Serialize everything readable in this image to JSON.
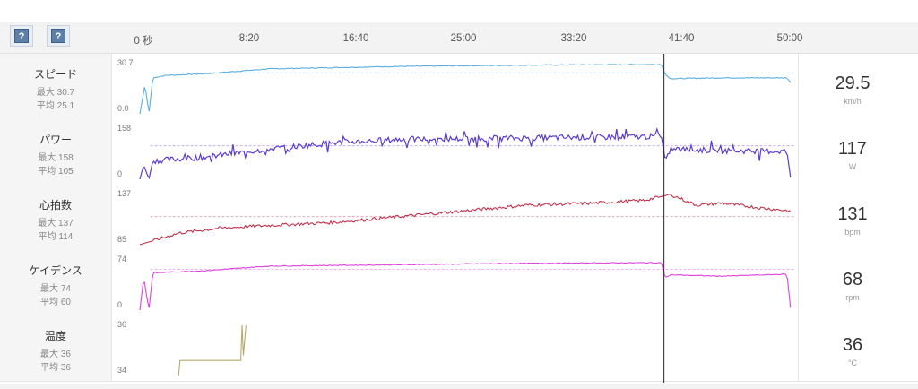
{
  "help_buttons": [
    {
      "label": "?"
    },
    {
      "label": "?"
    }
  ],
  "time_ticks": [
    "0 秒",
    "8:20",
    "16:40",
    "25:00",
    "33:20",
    "41:40",
    "50:00"
  ],
  "cursor_time_min": 40.5,
  "total_time_min": 50.5,
  "rows": [
    {
      "id": "speed",
      "name": "スピード",
      "max": "最大 30.7",
      "avg": "平均 25.1",
      "value": "29.5",
      "unit": "km/h",
      "ytop": "30.7",
      "ybot": "0.0",
      "color": "#5aaee0",
      "min": 0,
      "maxv": 30.7,
      "avgv": 25.1
    },
    {
      "id": "power",
      "name": "パワー",
      "max": "最大 158",
      "avg": "平均 105",
      "value": "117",
      "unit": "W",
      "ytop": "158",
      "ybot": "0",
      "color": "#5a3bd0",
      "min": 0,
      "maxv": 158,
      "avgv": 105
    },
    {
      "id": "hr",
      "name": "心拍数",
      "max": "最大 137",
      "avg": "平均 114",
      "value": "131",
      "unit": "bpm",
      "ytop": "137",
      "ybot": "85",
      "color": "#c0304a",
      "min": 85,
      "maxv": 137,
      "avgv": 114
    },
    {
      "id": "cadence",
      "name": "ケイデンス",
      "max": "最大 74",
      "avg": "平均 60",
      "value": "68",
      "unit": "rpm",
      "ytop": "74",
      "ybot": "0",
      "color": "#e040e0",
      "min": 0,
      "maxv": 74,
      "avgv": 60
    },
    {
      "id": "temp",
      "name": "温度",
      "max": "最大 36",
      "avg": "平均 36",
      "value": "36",
      "unit": "°C",
      "ytop": "36",
      "ybot": "34",
      "color": "#b5a96a",
      "min": 34,
      "maxv": 36,
      "avgv": 36
    }
  ],
  "chart_data": {
    "type": "line",
    "xlabel": "",
    "x_range_min": [
      0,
      50.5
    ],
    "series": [
      {
        "name": "スピード",
        "values_profile": [
          [
            0,
            0
          ],
          [
            0.4,
            18
          ],
          [
            0.7,
            0
          ],
          [
            1,
            22
          ],
          [
            2,
            23.5
          ],
          [
            5,
            24.5
          ],
          [
            10,
            27.5
          ],
          [
            20,
            29
          ],
          [
            30,
            29.8
          ],
          [
            40.3,
            30.2
          ],
          [
            40.6,
            24
          ],
          [
            41,
            21.5
          ],
          [
            45,
            22
          ],
          [
            50,
            22
          ],
          [
            50.3,
            19
          ]
        ]
      },
      {
        "name": "パワー",
        "values_profile": [
          [
            0,
            0
          ],
          [
            0.3,
            45
          ],
          [
            0.7,
            0
          ],
          [
            1,
            58
          ],
          [
            5,
            70
          ],
          [
            10,
            95
          ],
          [
            15,
            115
          ],
          [
            20,
            125
          ],
          [
            30,
            130
          ],
          [
            40.3,
            135
          ],
          [
            40.6,
            60
          ],
          [
            41,
            95
          ],
          [
            45,
            90
          ],
          [
            50,
            88
          ],
          [
            50.3,
            0
          ]
        ]
      },
      {
        "name": "心拍数",
        "values_profile": [
          [
            0,
            85
          ],
          [
            3,
            97
          ],
          [
            6,
            102
          ],
          [
            10,
            105
          ],
          [
            15,
            108
          ],
          [
            20,
            114
          ],
          [
            25,
            120
          ],
          [
            30,
            126
          ],
          [
            35,
            128
          ],
          [
            39,
            131
          ],
          [
            41,
            137
          ],
          [
            43,
            126
          ],
          [
            45,
            128
          ],
          [
            48,
            123
          ],
          [
            50.3,
            120
          ]
        ]
      },
      {
        "name": "ケイデンス",
        "values_profile": [
          [
            0,
            0
          ],
          [
            0.3,
            48
          ],
          [
            0.7,
            0
          ],
          [
            1,
            55
          ],
          [
            5,
            58
          ],
          [
            10,
            65
          ],
          [
            20,
            67
          ],
          [
            30,
            69
          ],
          [
            40.3,
            70
          ],
          [
            40.6,
            48
          ],
          [
            41,
            52
          ],
          [
            45,
            50
          ],
          [
            50,
            53
          ],
          [
            50.3,
            0
          ]
        ]
      },
      {
        "name": "温度",
        "values_profile": [
          [
            3,
            34
          ],
          [
            3.1,
            34.6
          ],
          [
            7.8,
            34.6
          ],
          [
            7.9,
            36
          ],
          [
            8,
            34.8
          ],
          [
            8.2,
            36
          ]
        ]
      }
    ]
  }
}
